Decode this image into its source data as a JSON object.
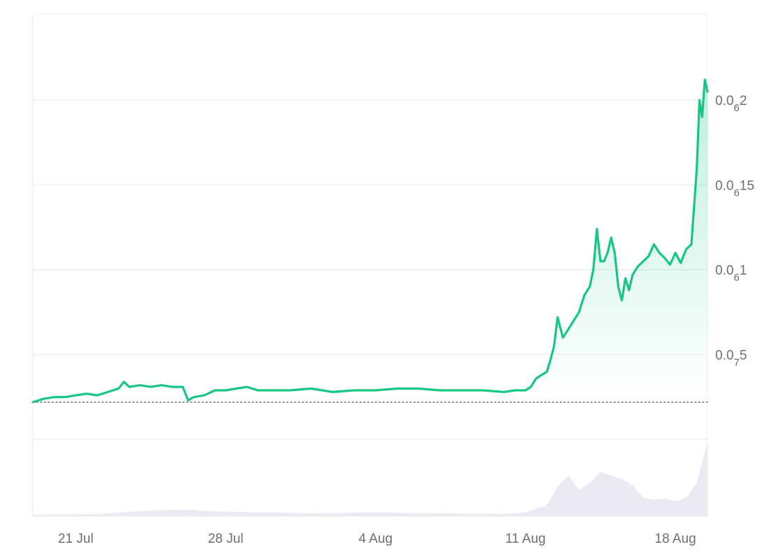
{
  "chart_data": {
    "type": "line",
    "title": "",
    "xlabel": "",
    "ylabel": "",
    "x_axis": {
      "type": "date",
      "range": [
        "2025-07-19",
        "2025-08-19T12:00"
      ],
      "ticks": [
        {
          "label": "21 Jul",
          "date": "2025-07-21"
        },
        {
          "label": "28 Jul",
          "date": "2025-07-28"
        },
        {
          "label": "4 Aug",
          "date": "2025-08-04"
        },
        {
          "label": "11 Aug",
          "date": "2025-08-11"
        },
        {
          "label": "18 Aug",
          "date": "2025-08-18"
        }
      ]
    },
    "y_axis": {
      "position": "right",
      "range": [
        0.0,
        2.5e-07
      ],
      "ticks": [
        {
          "value": 5e-08,
          "prefix": "0.0",
          "sub": "7",
          "suffix": "5"
        },
        {
          "value": 1e-07,
          "prefix": "0.0",
          "sub": "6",
          "suffix": "1"
        },
        {
          "value": 1.5e-07,
          "prefix": "0.0",
          "sub": "6",
          "suffix": "15"
        },
        {
          "value": 2e-07,
          "prefix": "0.0",
          "sub": "6",
          "suffix": "2"
        }
      ],
      "grid": true
    },
    "reference_line": {
      "value": 2.2e-08,
      "style": "dotted"
    },
    "colors": {
      "line": "#16c784",
      "area_top": "#16c784",
      "volume": "#e9eaf2",
      "grid": "#e8e8ea",
      "reference": "#6e6e73"
    },
    "series": [
      {
        "x": [
          "2025-07-19",
          "2025-07-19T12:00",
          "2025-07-20",
          "2025-07-20T12:00",
          "2025-07-21",
          "2025-07-21T12:00",
          "2025-07-22",
          "2025-07-22T12:00",
          "2025-07-23",
          "2025-07-23T06:00",
          "2025-07-23T12:00",
          "2025-07-24",
          "2025-07-24T12:00",
          "2025-07-25",
          "2025-07-25T12:00",
          "2025-07-26",
          "2025-07-26T06:00",
          "2025-07-26T12:00",
          "2025-07-27",
          "2025-07-27T12:00",
          "2025-07-28",
          "2025-07-28T12:00",
          "2025-07-29",
          "2025-07-29T12:00",
          "2025-07-30",
          "2025-07-31",
          "2025-08-01",
          "2025-08-02",
          "2025-08-03",
          "2025-08-04",
          "2025-08-05",
          "2025-08-06",
          "2025-08-07",
          "2025-08-08",
          "2025-08-09",
          "2025-08-10",
          "2025-08-10T12:00",
          "2025-08-11",
          "2025-08-11T06:00",
          "2025-08-11T12:00",
          "2025-08-11T18:00",
          "2025-08-12",
          "2025-08-12T04:00",
          "2025-08-12T08:00",
          "2025-08-12T12:00",
          "2025-08-12T18:00",
          "2025-08-13",
          "2025-08-13T06:00",
          "2025-08-13T12:00",
          "2025-08-13T18:00",
          "2025-08-14",
          "2025-08-14T04:00",
          "2025-08-14T08:00",
          "2025-08-14T12:00",
          "2025-08-14T16:00",
          "2025-08-14T20:00",
          "2025-08-15",
          "2025-08-15T04:00",
          "2025-08-15T08:00",
          "2025-08-15T12:00",
          "2025-08-15T16:00",
          "2025-08-15T20:00",
          "2025-08-16",
          "2025-08-16T06:00",
          "2025-08-16T12:00",
          "2025-08-16T18:00",
          "2025-08-17",
          "2025-08-17T06:00",
          "2025-08-17T12:00",
          "2025-08-17T18:00",
          "2025-08-18",
          "2025-08-18T06:00",
          "2025-08-18T12:00",
          "2025-08-18T18:00",
          "2025-08-19",
          "2025-08-19T03:00",
          "2025-08-19T06:00",
          "2025-08-19T09:00",
          "2025-08-19T12:00"
        ],
        "y": [
          2.2e-08,
          2.4e-08,
          2.5e-08,
          2.5e-08,
          2.6e-08,
          2.7e-08,
          2.6e-08,
          2.8e-08,
          3e-08,
          3.4e-08,
          3.1e-08,
          3.2e-08,
          3.1e-08,
          3.2e-08,
          3.1e-08,
          3.1e-08,
          2.3e-08,
          2.5e-08,
          2.6e-08,
          2.9e-08,
          2.9e-08,
          3e-08,
          3.1e-08,
          2.9e-08,
          2.9e-08,
          2.9e-08,
          3e-08,
          2.8e-08,
          2.9e-08,
          2.9e-08,
          3e-08,
          3e-08,
          2.9e-08,
          2.9e-08,
          2.9e-08,
          2.8e-08,
          2.9e-08,
          2.9e-08,
          3.1e-08,
          3.6e-08,
          3.8e-08,
          4e-08,
          4.7e-08,
          5.5e-08,
          7.2e-08,
          6e-08,
          6.5e-08,
          7e-08,
          7.5e-08,
          8.5e-08,
          9e-08,
          1e-07,
          1.24e-07,
          1.05e-07,
          1.05e-07,
          1.1e-07,
          1.19e-07,
          1.1e-07,
          9e-08,
          8.2e-08,
          9.5e-08,
          8.8e-08,
          9.7e-08,
          1.02e-07,
          1.05e-07,
          1.08e-07,
          1.15e-07,
          1.1e-07,
          1.07e-07,
          1.03e-07,
          1.1e-07,
          1.04e-07,
          1.12e-07,
          1.15e-07,
          1.6e-07,
          2e-07,
          1.9e-07,
          2.12e-07,
          2.05e-07
        ]
      }
    ],
    "volume": {
      "x": [
        "2025-07-19",
        "2025-07-22",
        "2025-07-24",
        "2025-07-26",
        "2025-07-28",
        "2025-08-01",
        "2025-08-04",
        "2025-08-07",
        "2025-08-10",
        "2025-08-11",
        "2025-08-12",
        "2025-08-12T12:00",
        "2025-08-13",
        "2025-08-13T12:00",
        "2025-08-14",
        "2025-08-14T12:00",
        "2025-08-15",
        "2025-08-15T12:00",
        "2025-08-16",
        "2025-08-16T12:00",
        "2025-08-17",
        "2025-08-17T12:00",
        "2025-08-18",
        "2025-08-18T12:00",
        "2025-08-19",
        "2025-08-19T12:00"
      ],
      "y": [
        0.02,
        0.03,
        0.07,
        0.09,
        0.06,
        0.04,
        0.05,
        0.04,
        0.03,
        0.05,
        0.15,
        0.4,
        0.55,
        0.35,
        0.45,
        0.6,
        0.55,
        0.5,
        0.42,
        0.25,
        0.22,
        0.24,
        0.2,
        0.25,
        0.45,
        1.0
      ]
    }
  }
}
